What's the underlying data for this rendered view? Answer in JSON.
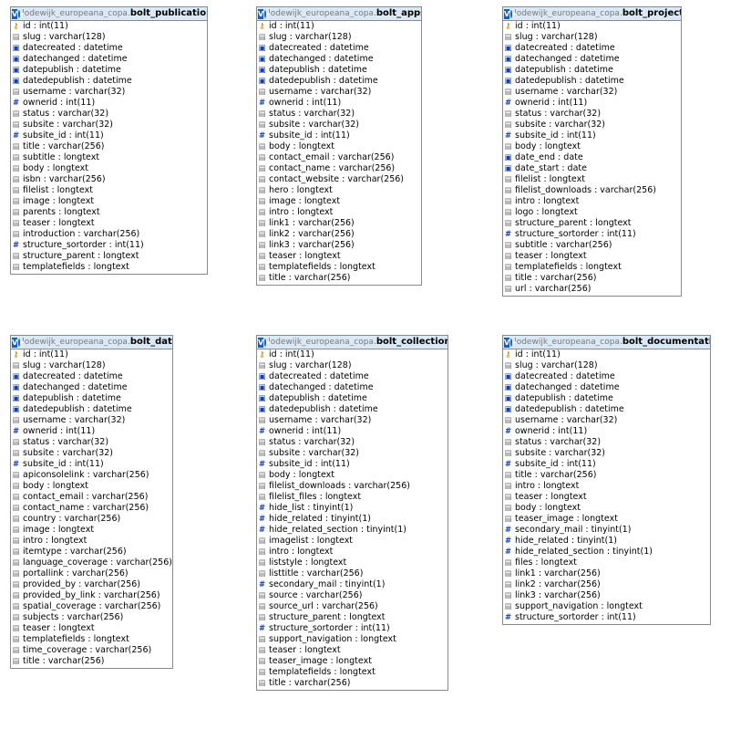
{
  "database": "lodewijk_europeana_copa",
  "separator": ".",
  "header_badge": "V",
  "tables": [
    {
      "name": "bolt_publications",
      "columns": [
        {
          "label": "id : int(11)",
          "icon": "key"
        },
        {
          "label": "slug : varchar(128)",
          "icon": "text"
        },
        {
          "label": "datecreated : datetime",
          "icon": "date"
        },
        {
          "label": "datechanged : datetime",
          "icon": "date"
        },
        {
          "label": "datepublish : datetime",
          "icon": "date"
        },
        {
          "label": "datedepublish : datetime",
          "icon": "date"
        },
        {
          "label": "username : varchar(32)",
          "icon": "text"
        },
        {
          "label": "ownerid : int(11)",
          "icon": "hash"
        },
        {
          "label": "status : varchar(32)",
          "icon": "text"
        },
        {
          "label": "subsite : varchar(32)",
          "icon": "text"
        },
        {
          "label": "subsite_id : int(11)",
          "icon": "hash"
        },
        {
          "label": "title : varchar(256)",
          "icon": "text"
        },
        {
          "label": "subtitle : longtext",
          "icon": "text"
        },
        {
          "label": "body : longtext",
          "icon": "text"
        },
        {
          "label": "isbn : varchar(256)",
          "icon": "text"
        },
        {
          "label": "filelist : longtext",
          "icon": "text"
        },
        {
          "label": "image : longtext",
          "icon": "text"
        },
        {
          "label": "parents : longtext",
          "icon": "text"
        },
        {
          "label": "teaser : longtext",
          "icon": "text"
        },
        {
          "label": "introduction : varchar(256)",
          "icon": "text"
        },
        {
          "label": "structure_sortorder : int(11)",
          "icon": "hash"
        },
        {
          "label": "structure_parent : longtext",
          "icon": "text"
        },
        {
          "label": "templatefields : longtext",
          "icon": "text"
        }
      ]
    },
    {
      "name": "bolt_apps",
      "columns": [
        {
          "label": "id : int(11)",
          "icon": "key"
        },
        {
          "label": "slug : varchar(128)",
          "icon": "text"
        },
        {
          "label": "datecreated : datetime",
          "icon": "date"
        },
        {
          "label": "datechanged : datetime",
          "icon": "date"
        },
        {
          "label": "datepublish : datetime",
          "icon": "date"
        },
        {
          "label": "datedepublish : datetime",
          "icon": "date"
        },
        {
          "label": "username : varchar(32)",
          "icon": "text"
        },
        {
          "label": "ownerid : int(11)",
          "icon": "hash"
        },
        {
          "label": "status : varchar(32)",
          "icon": "text"
        },
        {
          "label": "subsite : varchar(32)",
          "icon": "text"
        },
        {
          "label": "subsite_id : int(11)",
          "icon": "hash"
        },
        {
          "label": "body : longtext",
          "icon": "text"
        },
        {
          "label": "contact_email : varchar(256)",
          "icon": "text"
        },
        {
          "label": "contact_name : varchar(256)",
          "icon": "text"
        },
        {
          "label": "contact_website : varchar(256)",
          "icon": "text"
        },
        {
          "label": "hero : longtext",
          "icon": "text"
        },
        {
          "label": "image : longtext",
          "icon": "text"
        },
        {
          "label": "intro : longtext",
          "icon": "text"
        },
        {
          "label": "link1 : varchar(256)",
          "icon": "text"
        },
        {
          "label": "link2 : varchar(256)",
          "icon": "text"
        },
        {
          "label": "link3 : varchar(256)",
          "icon": "text"
        },
        {
          "label": "teaser : longtext",
          "icon": "text"
        },
        {
          "label": "templatefields : longtext",
          "icon": "text"
        },
        {
          "label": "title : varchar(256)",
          "icon": "text"
        }
      ]
    },
    {
      "name": "bolt_projects",
      "columns": [
        {
          "label": "id : int(11)",
          "icon": "key"
        },
        {
          "label": "slug : varchar(128)",
          "icon": "text"
        },
        {
          "label": "datecreated : datetime",
          "icon": "date"
        },
        {
          "label": "datechanged : datetime",
          "icon": "date"
        },
        {
          "label": "datepublish : datetime",
          "icon": "date"
        },
        {
          "label": "datedepublish : datetime",
          "icon": "date"
        },
        {
          "label": "username : varchar(32)",
          "icon": "text"
        },
        {
          "label": "ownerid : int(11)",
          "icon": "hash"
        },
        {
          "label": "status : varchar(32)",
          "icon": "text"
        },
        {
          "label": "subsite : varchar(32)",
          "icon": "text"
        },
        {
          "label": "subsite_id : int(11)",
          "icon": "hash"
        },
        {
          "label": "body : longtext",
          "icon": "text"
        },
        {
          "label": "date_end : date",
          "icon": "date"
        },
        {
          "label": "date_start : date",
          "icon": "date"
        },
        {
          "label": "filelist : longtext",
          "icon": "text"
        },
        {
          "label": "filelist_downloads : varchar(256)",
          "icon": "text"
        },
        {
          "label": "intro : longtext",
          "icon": "text"
        },
        {
          "label": "logo : longtext",
          "icon": "text"
        },
        {
          "label": "structure_parent : longtext",
          "icon": "text"
        },
        {
          "label": "structure_sortorder : int(11)",
          "icon": "hash"
        },
        {
          "label": "subtitle : varchar(256)",
          "icon": "text"
        },
        {
          "label": "teaser : longtext",
          "icon": "text"
        },
        {
          "label": "templatefields : longtext",
          "icon": "text"
        },
        {
          "label": "title : varchar(256)",
          "icon": "text"
        },
        {
          "label": "url : varchar(256)",
          "icon": "text"
        }
      ]
    },
    {
      "name": "bolt_data",
      "columns": [
        {
          "label": "id : int(11)",
          "icon": "key"
        },
        {
          "label": "slug : varchar(128)",
          "icon": "text"
        },
        {
          "label": "datecreated : datetime",
          "icon": "date"
        },
        {
          "label": "datechanged : datetime",
          "icon": "date"
        },
        {
          "label": "datepublish : datetime",
          "icon": "date"
        },
        {
          "label": "datedepublish : datetime",
          "icon": "date"
        },
        {
          "label": "username : varchar(32)",
          "icon": "text"
        },
        {
          "label": "ownerid : int(11)",
          "icon": "hash"
        },
        {
          "label": "status : varchar(32)",
          "icon": "text"
        },
        {
          "label": "subsite : varchar(32)",
          "icon": "text"
        },
        {
          "label": "subsite_id : int(11)",
          "icon": "hash"
        },
        {
          "label": "apiconsolelink : varchar(256)",
          "icon": "text"
        },
        {
          "label": "body : longtext",
          "icon": "text"
        },
        {
          "label": "contact_email : varchar(256)",
          "icon": "text"
        },
        {
          "label": "contact_name : varchar(256)",
          "icon": "text"
        },
        {
          "label": "country : varchar(256)",
          "icon": "text"
        },
        {
          "label": "image : longtext",
          "icon": "text"
        },
        {
          "label": "intro : longtext",
          "icon": "text"
        },
        {
          "label": "itemtype : varchar(256)",
          "icon": "text"
        },
        {
          "label": "language_coverage : varchar(256)",
          "icon": "text"
        },
        {
          "label": "portallink : varchar(256)",
          "icon": "text"
        },
        {
          "label": "provided_by : varchar(256)",
          "icon": "text"
        },
        {
          "label": "provided_by_link : varchar(256)",
          "icon": "text"
        },
        {
          "label": "spatial_coverage : varchar(256)",
          "icon": "text"
        },
        {
          "label": "subjects : varchar(256)",
          "icon": "text"
        },
        {
          "label": "teaser : longtext",
          "icon": "text"
        },
        {
          "label": "templatefields : longtext",
          "icon": "text"
        },
        {
          "label": "time_coverage : varchar(256)",
          "icon": "text"
        },
        {
          "label": "title : varchar(256)",
          "icon": "text"
        }
      ]
    },
    {
      "name": "bolt_collections",
      "columns": [
        {
          "label": "id : int(11)",
          "icon": "key"
        },
        {
          "label": "slug : varchar(128)",
          "icon": "text"
        },
        {
          "label": "datecreated : datetime",
          "icon": "date"
        },
        {
          "label": "datechanged : datetime",
          "icon": "date"
        },
        {
          "label": "datepublish : datetime",
          "icon": "date"
        },
        {
          "label": "datedepublish : datetime",
          "icon": "date"
        },
        {
          "label": "username : varchar(32)",
          "icon": "text"
        },
        {
          "label": "ownerid : int(11)",
          "icon": "hash"
        },
        {
          "label": "status : varchar(32)",
          "icon": "text"
        },
        {
          "label": "subsite : varchar(32)",
          "icon": "text"
        },
        {
          "label": "subsite_id : int(11)",
          "icon": "hash"
        },
        {
          "label": "body : longtext",
          "icon": "text"
        },
        {
          "label": "filelist_downloads : varchar(256)",
          "icon": "text"
        },
        {
          "label": "filelist_files : longtext",
          "icon": "text"
        },
        {
          "label": "hide_list : tinyint(1)",
          "icon": "hash"
        },
        {
          "label": "hide_related : tinyint(1)",
          "icon": "hash"
        },
        {
          "label": "hide_related_section : tinyint(1)",
          "icon": "hash"
        },
        {
          "label": "imagelist : longtext",
          "icon": "text"
        },
        {
          "label": "intro : longtext",
          "icon": "text"
        },
        {
          "label": "liststyle : longtext",
          "icon": "text"
        },
        {
          "label": "listtitle : varchar(256)",
          "icon": "text"
        },
        {
          "label": "secondary_mail : tinyint(1)",
          "icon": "hash"
        },
        {
          "label": "source : varchar(256)",
          "icon": "text"
        },
        {
          "label": "source_url : varchar(256)",
          "icon": "text"
        },
        {
          "label": "structure_parent : longtext",
          "icon": "text"
        },
        {
          "label": "structure_sortorder : int(11)",
          "icon": "hash"
        },
        {
          "label": "support_navigation : longtext",
          "icon": "text"
        },
        {
          "label": "teaser : longtext",
          "icon": "text"
        },
        {
          "label": "teaser_image : longtext",
          "icon": "text"
        },
        {
          "label": "templatefields : longtext",
          "icon": "text"
        },
        {
          "label": "title : varchar(256)",
          "icon": "text"
        }
      ]
    },
    {
      "name": "bolt_documentation",
      "columns": [
        {
          "label": "id : int(11)",
          "icon": "key"
        },
        {
          "label": "slug : varchar(128)",
          "icon": "text"
        },
        {
          "label": "datecreated : datetime",
          "icon": "date"
        },
        {
          "label": "datechanged : datetime",
          "icon": "date"
        },
        {
          "label": "datepublish : datetime",
          "icon": "date"
        },
        {
          "label": "datedepublish : datetime",
          "icon": "date"
        },
        {
          "label": "username : varchar(32)",
          "icon": "text"
        },
        {
          "label": "ownerid : int(11)",
          "icon": "hash"
        },
        {
          "label": "status : varchar(32)",
          "icon": "text"
        },
        {
          "label": "subsite : varchar(32)",
          "icon": "text"
        },
        {
          "label": "subsite_id : int(11)",
          "icon": "hash"
        },
        {
          "label": "title : varchar(256)",
          "icon": "text"
        },
        {
          "label": "intro : longtext",
          "icon": "text"
        },
        {
          "label": "teaser : longtext",
          "icon": "text"
        },
        {
          "label": "body : longtext",
          "icon": "text"
        },
        {
          "label": "teaser_image : longtext",
          "icon": "text"
        },
        {
          "label": "secondary_mail : tinyint(1)",
          "icon": "hash"
        },
        {
          "label": "hide_related : tinyint(1)",
          "icon": "hash"
        },
        {
          "label": "hide_related_section : tinyint(1)",
          "icon": "hash"
        },
        {
          "label": "files : longtext",
          "icon": "text"
        },
        {
          "label": "link1 : varchar(256)",
          "icon": "text"
        },
        {
          "label": "link2 : varchar(256)",
          "icon": "text"
        },
        {
          "label": "link3 : varchar(256)",
          "icon": "text"
        },
        {
          "label": "support_navigation : longtext",
          "icon": "text"
        },
        {
          "label": "structure_sortorder : int(11)",
          "icon": "hash"
        }
      ]
    }
  ]
}
